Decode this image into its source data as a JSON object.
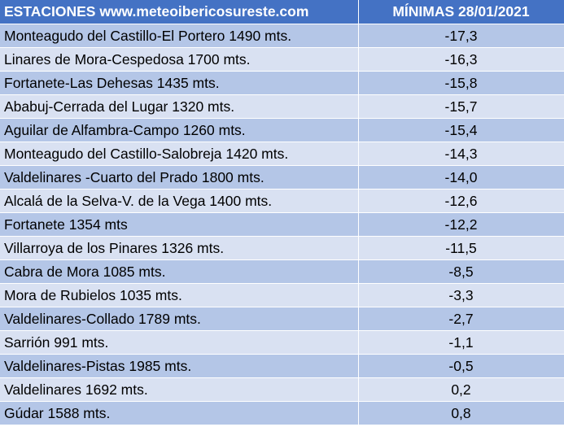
{
  "header": {
    "stations": "ESTACIONES www.meteoibericosureste.com",
    "minimas": "MÍNIMAS 28/01/2021"
  },
  "rows": [
    {
      "station": "Monteagudo del Castillo-El Portero 1490 mts.",
      "value": "-17,3"
    },
    {
      "station": "Linares de Mora-Cespedosa 1700 mts.",
      "value": "-16,3"
    },
    {
      "station": "Fortanete-Las Dehesas 1435 mts.",
      "value": "-15,8"
    },
    {
      "station": "Ababuj-Cerrada del Lugar 1320 mts.",
      "value": "-15,7"
    },
    {
      "station": "Aguilar de Alfambra-Campo 1260 mts.",
      "value": "-15,4"
    },
    {
      "station": "Monteagudo del Castillo-Salobreja 1420 mts.",
      "value": "-14,3"
    },
    {
      "station": "Valdelinares -Cuarto del Prado 1800 mts.",
      "value": "-14,0"
    },
    {
      "station": "Alcalá de la Selva-V. de la Vega 1400 mts.",
      "value": "-12,6"
    },
    {
      "station": "Fortanete 1354 mts",
      "value": "-12,2"
    },
    {
      "station": "Villarroya de los Pinares 1326 mts.",
      "value": "-11,5"
    },
    {
      "station": "Cabra de Mora 1085 mts.",
      "value": "-8,5"
    },
    {
      "station": "Mora de Rubielos 1035 mts.",
      "value": "-3,3"
    },
    {
      "station": "Valdelinares-Collado 1789 mts.",
      "value": "-2,7"
    },
    {
      "station": "Sarrión 991 mts.",
      "value": "-1,1"
    },
    {
      "station": "Valdelinares-Pistas 1985 mts.",
      "value": "-0,5"
    },
    {
      "station": "Valdelinares 1692 mts.",
      "value": "0,2"
    },
    {
      "station": "Gúdar 1588 mts.",
      "value": "0,8"
    }
  ],
  "colors": {
    "header_bg": "#4472c4",
    "row_dark": "#b4c6e7",
    "row_light": "#d9e1f2"
  }
}
